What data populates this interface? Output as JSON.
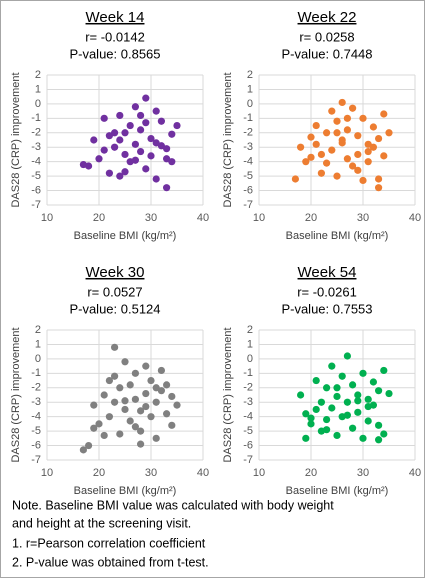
{
  "chart_data": [
    {
      "type": "scatter",
      "title": "Week 14",
      "subtitle": [
        "r= -0.0142",
        "P-value: 0.8565"
      ],
      "x_label": "Baseline BMI (kg/m²)",
      "y_label": "DAS28 (CRP) improvement",
      "color": "#7030a0",
      "grid": true,
      "xlim": [
        10,
        40
      ],
      "xticks": [
        10,
        20,
        30,
        40
      ],
      "ylim": [
        -7,
        2
      ],
      "yticks": [
        2,
        1,
        0,
        -1,
        -2,
        -3,
        -4,
        -5,
        -6,
        -7
      ],
      "x": [
        18,
        19,
        20,
        21,
        22,
        22,
        23,
        24,
        24,
        25,
        25,
        26,
        26,
        27,
        27,
        28,
        28,
        29,
        29,
        30,
        30,
        31,
        31,
        32,
        32,
        33,
        33,
        34,
        34,
        35,
        21,
        23,
        25,
        27,
        29,
        31,
        33,
        17,
        28,
        24
      ],
      "values": [
        -4.3,
        -2.5,
        -3.8,
        -1,
        -2.2,
        -4.8,
        -3,
        -0.8,
        -5,
        -2,
        -3.5,
        -1.5,
        -4,
        -0.2,
        -2.8,
        -3.3,
        -1.8,
        0.4,
        -4.5,
        -2.4,
        -3.6,
        -0.5,
        -5.2,
        -2.9,
        -1.2,
        -3.8,
        -5.8,
        -2.1,
        -4,
        -1.5,
        -3.2,
        -2,
        -4.7,
        -3.9,
        -1.3,
        -2.7,
        -3.1,
        -4.2,
        -0.8,
        -2.5
      ]
    },
    {
      "type": "scatter",
      "title": "Week 22",
      "subtitle": [
        "r= 0.0258",
        "P-value: 0.7448"
      ],
      "x_label": "Baseline BMI (kg/m²)",
      "y_label": "DAS28 (CRP) improvement",
      "color": "#ed7d31",
      "grid": true,
      "xlim": [
        10,
        40
      ],
      "xticks": [
        10,
        20,
        30,
        40
      ],
      "ylim": [
        -7,
        2
      ],
      "yticks": [
        2,
        1,
        0,
        -1,
        -2,
        -3,
        -4,
        -5,
        -6,
        -7
      ],
      "x": [
        17,
        18,
        19,
        20,
        21,
        22,
        22,
        23,
        24,
        24,
        25,
        25,
        26,
        26,
        27,
        27,
        28,
        28,
        29,
        29,
        30,
        30,
        31,
        31,
        32,
        32,
        33,
        33,
        34,
        34,
        35,
        21,
        23,
        25,
        27,
        29,
        31,
        33,
        20,
        26
      ],
      "values": [
        -5.2,
        -3,
        -4,
        -2.3,
        -1.5,
        -3.5,
        -4.8,
        -2,
        -0.5,
        -3.2,
        -1.2,
        -5,
        -2.5,
        0.1,
        -3.8,
        -1.8,
        -0.3,
        -4.3,
        -2.2,
        -3.5,
        -1,
        -5.3,
        -2.8,
        -4,
        -1.6,
        -3,
        -5.8,
        -2.4,
        -0.7,
        -3.6,
        -2,
        -2.8,
        -4.1,
        -2,
        -1,
        -4.6,
        -3.3,
        -5.2,
        -3.7,
        -2.7
      ]
    },
    {
      "type": "scatter",
      "title": "Week 30",
      "subtitle": [
        "r= 0.0527",
        "P-value: 0.5124"
      ],
      "x_label": "Baseline BMI (kg/m²)",
      "y_label": "DAS28 (CRP) improvement",
      "color": "#808080",
      "grid": true,
      "xlim": [
        10,
        40
      ],
      "xticks": [
        10,
        20,
        30,
        40
      ],
      "ylim": [
        -7,
        2
      ],
      "yticks": [
        2,
        1,
        0,
        -1,
        -2,
        -3,
        -4,
        -5,
        -6,
        -7
      ],
      "x": [
        17,
        18,
        19,
        20,
        21,
        22,
        22,
        23,
        23,
        24,
        24,
        25,
        25,
        26,
        26,
        27,
        27,
        28,
        28,
        29,
        29,
        30,
        30,
        31,
        31,
        32,
        32,
        33,
        33,
        34,
        34,
        35,
        21,
        23,
        25,
        27,
        29,
        31,
        19,
        28
      ],
      "values": [
        -6.3,
        -6,
        -3.2,
        -4.5,
        -2.5,
        -1.5,
        -4,
        0.8,
        -3,
        -2,
        -5.2,
        -0.2,
        -3.5,
        -1.8,
        -4.3,
        -2.8,
        -1,
        -3.6,
        -5,
        -0.5,
        -2.4,
        -4,
        -1.5,
        -3,
        -5.5,
        -2.2,
        -0.8,
        -3.8,
        -1.8,
        -4.6,
        -2.6,
        -3.2,
        -5.3,
        -1.2,
        -2.9,
        -4.7,
        -3.3,
        -2,
        -4.8,
        -5.9
      ]
    },
    {
      "type": "scatter",
      "title": "Week 54",
      "subtitle": [
        "r= -0.0261",
        "P-value: 0.7553"
      ],
      "x_label": "Baseline BMI (kg/m²)",
      "y_label": "DAS28 (CRP) improvement",
      "color": "#00b050",
      "grid": true,
      "xlim": [
        10,
        40
      ],
      "xticks": [
        10,
        20,
        30,
        40
      ],
      "ylim": [
        -7,
        2
      ],
      "yticks": [
        2,
        1,
        0,
        -1,
        -2,
        -3,
        -4,
        -5,
        -6,
        -7
      ],
      "x": [
        18,
        19,
        19,
        20,
        21,
        22,
        22,
        23,
        23,
        24,
        24,
        25,
        25,
        26,
        26,
        27,
        27,
        28,
        28,
        29,
        29,
        30,
        30,
        31,
        31,
        32,
        32,
        33,
        33,
        34,
        34,
        35,
        21,
        23,
        25,
        27,
        29,
        31,
        33,
        20
      ],
      "values": [
        -2.5,
        -5.5,
        -3.8,
        -4.5,
        -1.5,
        -3,
        -5,
        -2,
        -4.2,
        -0.5,
        -3.4,
        -2.6,
        -5.3,
        -1.2,
        -4,
        0.2,
        -3,
        -1.8,
        -4.8,
        -2.5,
        -3.7,
        -1,
        -5.5,
        -2.8,
        -4.3,
        -3.2,
        -1.6,
        -4.6,
        -2.2,
        -0.8,
        -5.2,
        -2.4,
        -3.5,
        -4.9,
        -2,
        -3.9,
        -2.9,
        -3.3,
        -5.6,
        -4.1
      ]
    }
  ],
  "notes": [
    "Note. Baseline BMI value was calculated with body weight",
    "and height at the screening visit.",
    "1.  r=Pearson correlation coefficient",
    "2.  P-value was obtained from t-test."
  ]
}
